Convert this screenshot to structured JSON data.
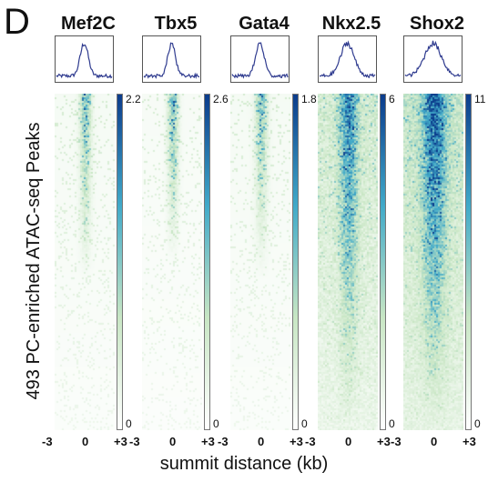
{
  "panel_label": "D",
  "chart_data": {
    "type": "heatmap",
    "ylabel": "493 PC-enriched ATAC-seq Peaks",
    "xlabel": "summit distance (kb)",
    "x_ticks": [
      "-3",
      "0",
      "+3"
    ],
    "n_rows": 493,
    "colormap": [
      "#ffffff",
      "#c8e6c4",
      "#41aac9",
      "#0b3c8c"
    ],
    "profile_color": "#2f3b8f",
    "panels": [
      {
        "title": "Mef2C",
        "scale_max": "2.2",
        "scale_min": "0",
        "profile_peak_width": "narrow",
        "signal": "strong-top, fading down"
      },
      {
        "title": "Tbx5",
        "scale_max": "2.6",
        "scale_min": "0",
        "profile_peak_width": "narrow",
        "signal": "strong-top, fading down"
      },
      {
        "title": "Gata4",
        "scale_max": "1.8",
        "scale_min": "0",
        "profile_peak_width": "narrow",
        "signal": "strong-top, fading down"
      },
      {
        "title": "Nkx2.5",
        "scale_max": "6",
        "scale_min": "0",
        "profile_peak_width": "medium",
        "signal": "broad, moderate"
      },
      {
        "title": "Shox2",
        "scale_max": "11",
        "scale_min": "0",
        "profile_peak_width": "broad",
        "signal": "broad, strong"
      }
    ]
  }
}
